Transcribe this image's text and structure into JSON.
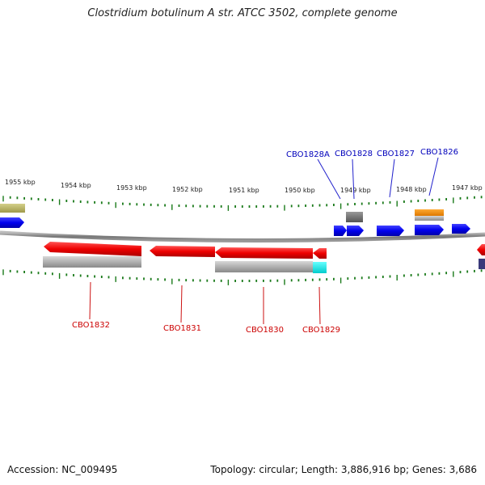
{
  "title": "Clostridium botulinum A str. ATCC 3502, complete genome",
  "colors": {
    "plus_strand_gene": "#0000ee",
    "minus_strand_gene": "#ee0000",
    "plus_label": "#0000bb",
    "minus_label": "#cc0000",
    "backbone": "#888888",
    "ticks": "#1a7a1a"
  },
  "scale": {
    "top_labels": [
      "1955 kbp",
      "1954 kbp",
      "1953 kbp",
      "1952 kbp",
      "1951 kbp",
      "1950 kbp",
      "1949 kbp",
      "1948 kbp",
      "1947 kbp"
    ]
  },
  "genes_plus": [
    {
      "id": "CBO1828A",
      "label": "CBO1828A"
    },
    {
      "id": "CBO1828",
      "label": "CBO1828"
    },
    {
      "id": "CBO1827",
      "label": "CBO1827"
    },
    {
      "id": "CBO1826",
      "label": "CBO1826"
    }
  ],
  "genes_minus": [
    {
      "id": "CBO1832",
      "label": "CBO1832"
    },
    {
      "id": "CBO1831",
      "label": "CBO1831"
    },
    {
      "id": "CBO1830",
      "label": "CBO1830"
    },
    {
      "id": "CBO1829",
      "label": "CBO1829"
    }
  ],
  "footer": {
    "accession": "Accession: NC_009495",
    "topology": "Topology: circular; Length: 3,886,916 bp; Genes: 3,686"
  }
}
